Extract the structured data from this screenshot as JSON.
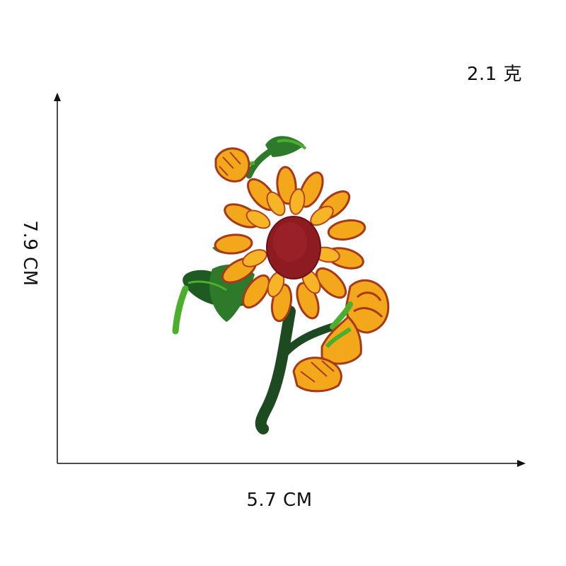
{
  "dimensions": {
    "weight": "2.1 克",
    "height": "7.9 CM",
    "width": "5.7 CM"
  },
  "product": {
    "icon": "sunflower-embroidered-patch",
    "colors": {
      "petal": "#f2a81a",
      "petal_outline": "#a8381a",
      "center": "#8e1a22",
      "leaf_dark": "#1f5a22",
      "leaf_light": "#4caf2c",
      "stem": "#1e4a22"
    }
  },
  "axes": {
    "color": "#111111"
  }
}
